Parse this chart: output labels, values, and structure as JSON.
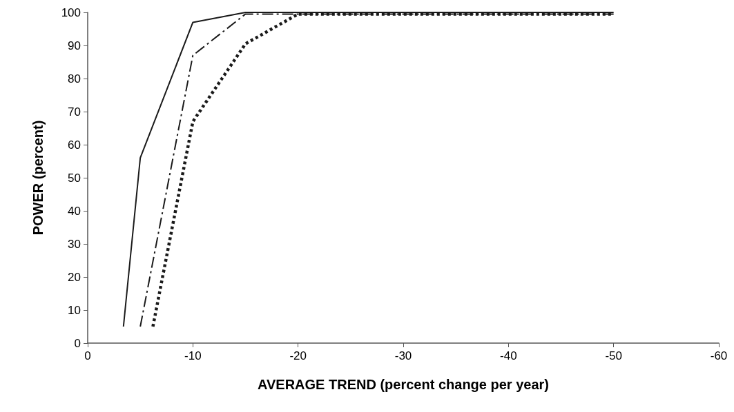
{
  "chart_data": {
    "type": "line",
    "xlabel": "AVERAGE TREND (percent change per year)",
    "ylabel": "POWER (percent)",
    "xlim": [
      0,
      -60
    ],
    "xticks": [
      0,
      -10,
      -20,
      -30,
      -40,
      -50,
      -60
    ],
    "ylim": [
      0,
      100
    ],
    "yticks": [
      0,
      10,
      20,
      30,
      40,
      50,
      60,
      70,
      80,
      90,
      100
    ],
    "grid": false,
    "marker": "none",
    "series": [
      {
        "color": "#1a1a1a",
        "line_style": "solid",
        "x": [
          -3.4,
          -5,
          -10,
          -15,
          -20,
          -50
        ],
        "values": [
          5,
          56,
          97,
          100,
          100,
          100
        ]
      },
      {
        "color": "#1a1a1a",
        "line_style": "dashdot",
        "x": [
          -5,
          -10,
          -15,
          -20,
          -50
        ],
        "values": [
          5,
          87,
          99.5,
          99.5,
          99.5
        ]
      },
      {
        "color": "#1a1a1a",
        "line_style": "dotted",
        "x": [
          -6.2,
          -10,
          -15,
          -20,
          -50
        ],
        "values": [
          5,
          67,
          90.5,
          99.5,
          99.5
        ]
      }
    ]
  }
}
